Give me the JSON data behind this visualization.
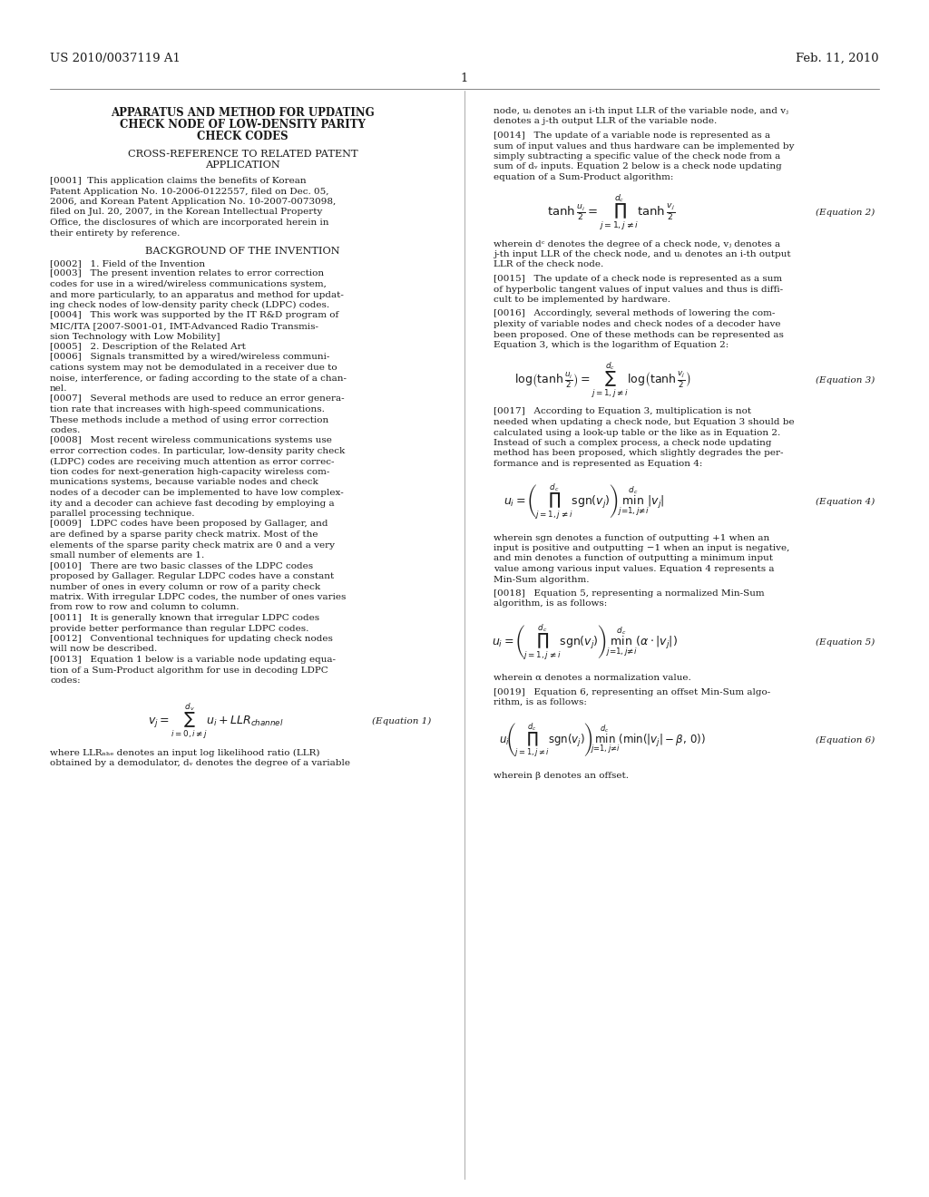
{
  "title": "APPARATUS AND METHOD FOR UPDATING CHECK NODE OF LOW-DENSITY PARITY CHECK CODES",
  "header_left": "US 2010/0037119 A1",
  "header_right": "Feb. 11, 2010",
  "page_number": "1",
  "bg_color": "#ffffff",
  "text_color": "#1a1a1a",
  "font_size_body": 7.5,
  "font_size_header": 9,
  "font_size_bold": 8
}
